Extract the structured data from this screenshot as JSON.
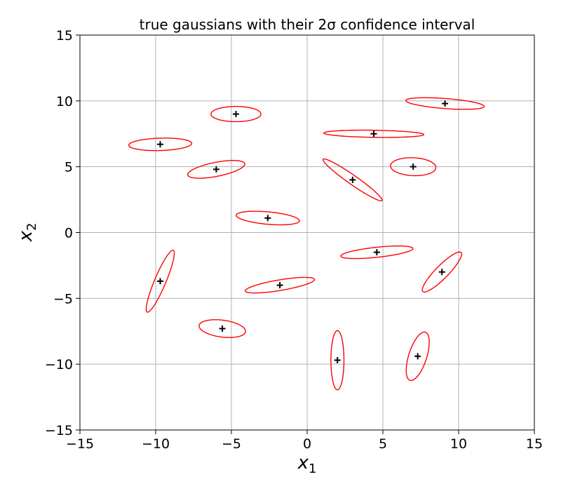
{
  "chart_data": {
    "type": "scatter",
    "title": "true gaussians with their 2σ confidence interval",
    "xlabel": {
      "base": "x",
      "sub": "1"
    },
    "ylabel": {
      "base": "x",
      "sub": "2"
    },
    "xlim": [
      -15,
      15
    ],
    "ylim": [
      -15,
      15
    ],
    "xticks": [
      -15,
      -10,
      -5,
      0,
      5,
      10,
      15
    ],
    "yticks": [
      -15,
      -10,
      -5,
      0,
      5,
      10,
      15
    ],
    "tick_labels_x": [
      "−15",
      "−10",
      "−5",
      "0",
      "5",
      "10",
      "15"
    ],
    "tick_labels_y": [
      "−15",
      "−10",
      "−5",
      "0",
      "5",
      "10",
      "15"
    ],
    "grid": true,
    "marker": "+",
    "colors": {
      "ellipse": "#ff0000",
      "marker": "#000000",
      "grid": "#b0b0b0"
    },
    "ellipses": [
      {
        "cx": 9.1,
        "cy": 9.8,
        "ra": 2.6,
        "rb": 0.38,
        "angle": -5
      },
      {
        "cx": -4.7,
        "cy": 9.0,
        "ra": 1.65,
        "rb": 0.58,
        "angle": 0
      },
      {
        "cx": 4.4,
        "cy": 7.5,
        "ra": 3.3,
        "rb": 0.27,
        "angle": -1
      },
      {
        "cx": -9.7,
        "cy": 6.7,
        "ra": 2.08,
        "rb": 0.47,
        "angle": 2
      },
      {
        "cx": -6.0,
        "cy": 4.8,
        "ra": 1.93,
        "rb": 0.53,
        "angle": 13
      },
      {
        "cx": 7.0,
        "cy": 5.0,
        "ra": 1.5,
        "rb": 0.68,
        "angle": -3
      },
      {
        "cx": 3.0,
        "cy": 4.0,
        "ra": 2.5,
        "rb": 0.33,
        "angle": -39
      },
      {
        "cx": -2.6,
        "cy": 1.1,
        "ra": 2.1,
        "rb": 0.47,
        "angle": -6
      },
      {
        "cx": 4.6,
        "cy": -1.5,
        "ra": 2.4,
        "rb": 0.38,
        "angle": 7
      },
      {
        "cx": 8.9,
        "cy": -3.0,
        "ra": 1.95,
        "rb": 0.45,
        "angle": 50
      },
      {
        "cx": -9.7,
        "cy": -3.7,
        "ra": 2.5,
        "rb": 0.38,
        "angle": 70
      },
      {
        "cx": -1.8,
        "cy": -4.0,
        "ra": 2.33,
        "rb": 0.4,
        "angle": 11
      },
      {
        "cx": -5.6,
        "cy": -7.3,
        "ra": 1.55,
        "rb": 0.64,
        "angle": -9
      },
      {
        "cx": 2.0,
        "cy": -9.7,
        "ra": 2.25,
        "rb": 0.43,
        "angle": 90
      },
      {
        "cx": 7.3,
        "cy": -9.4,
        "ra": 1.9,
        "rb": 0.6,
        "angle": 75
      }
    ]
  }
}
